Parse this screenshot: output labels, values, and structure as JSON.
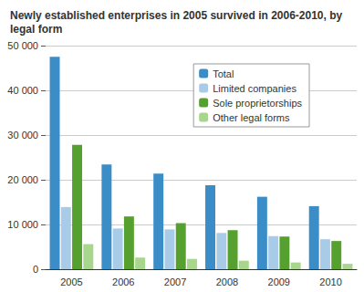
{
  "chart_data": {
    "type": "bar",
    "title": "Newly established enterprises in 2005 survived in 2006-2010, by legal form",
    "categories": [
      "2005",
      "2006",
      "2007",
      "2008",
      "2009",
      "2010"
    ],
    "series": [
      {
        "name": "Total",
        "color": "#3a8dc6",
        "values": [
          47500,
          23400,
          21400,
          18800,
          16200,
          14100
        ]
      },
      {
        "name": "Limited companies",
        "color": "#a8cbe8",
        "values": [
          13900,
          9100,
          8900,
          8100,
          7400,
          6700
        ]
      },
      {
        "name": "Sole proprietorships",
        "color": "#55a02e",
        "values": [
          27800,
          11800,
          10300,
          8700,
          7300,
          6300
        ]
      },
      {
        "name": "Other legal forms",
        "color": "#a9d68d",
        "values": [
          5600,
          2600,
          2300,
          1900,
          1500,
          1200
        ]
      }
    ],
    "ylim": [
      0,
      50000
    ],
    "yticks": [
      0,
      {
        "value": 10000,
        "label": "10 000"
      },
      {
        "value": 20000,
        "label": "20 000"
      },
      {
        "value": 30000,
        "label": "30 000"
      },
      {
        "value": 40000,
        "label": "40 000"
      },
      {
        "value": 50000,
        "label": "50 000"
      }
    ],
    "grid": true,
    "legend": "upper right"
  }
}
